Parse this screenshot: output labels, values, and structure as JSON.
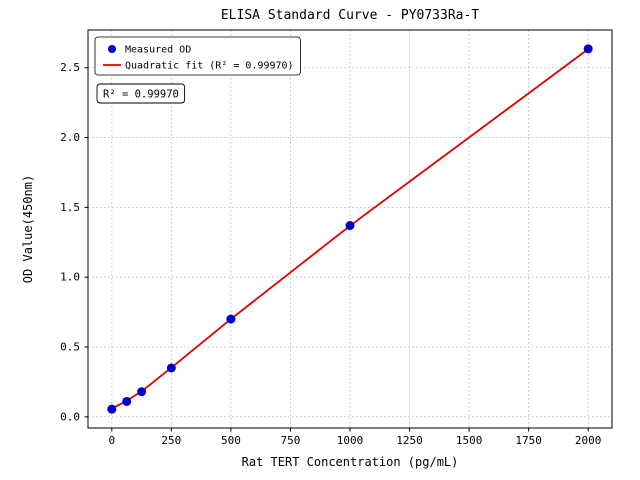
{
  "figure": {
    "title": "ELISA Standard Curve - PY0733Ra-T",
    "annotation": "R² = 0.99970"
  },
  "chart_data": {
    "type": "scatter",
    "title": "ELISA Standard Curve - PY0733Ra-T",
    "xlabel": "Rat TERT Concentration (pg/mL)",
    "ylabel": "OD Value(450nm)",
    "xlim": [
      -100,
      2100
    ],
    "ylim": [
      -0.08,
      2.77
    ],
    "xticks": [
      0,
      250,
      500,
      750,
      1000,
      1250,
      1500,
      1750,
      2000
    ],
    "yticks": [
      0.0,
      0.5,
      1.0,
      1.5,
      2.0,
      2.5
    ],
    "grid": true,
    "grid_style": "dotted",
    "legend_position": "upper left",
    "annotation": "R² = 0.99970",
    "colors": {
      "points": "#0000cc",
      "fit_line": "#dd0000",
      "grid": "#b5b5b5",
      "axes": "#000000"
    },
    "series": [
      {
        "name": "Measured OD",
        "type": "scatter",
        "color": "#0000cc",
        "x": [
          0,
          62.5,
          125,
          250,
          500,
          1000,
          2000
        ],
        "y": [
          0.055,
          0.11,
          0.18,
          0.35,
          0.7,
          1.37,
          2.635
        ]
      },
      {
        "name": "Quadratic fit (R² = 0.99970)",
        "type": "line",
        "color": "#dd0000",
        "x": [
          0,
          62.5,
          125,
          250,
          500,
          1000,
          2000
        ],
        "y": [
          0.058,
          0.115,
          0.182,
          0.352,
          0.7,
          1.368,
          2.633
        ]
      }
    ]
  }
}
